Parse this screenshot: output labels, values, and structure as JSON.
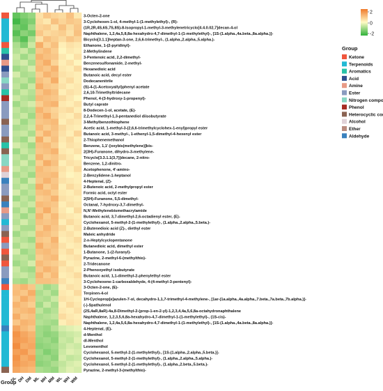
{
  "chart_data": {
    "type": "heatmap",
    "title": "",
    "columns": [
      "DL",
      "DH",
      "DM",
      "ML",
      "MH",
      "MM",
      "WL",
      "WH",
      "WM"
    ],
    "row_annotation_title": "Group",
    "colorbar": {
      "ticks": [
        2,
        0,
        -2
      ],
      "colors": [
        "#f07a2a",
        "#fffbc6",
        "#2fb13a"
      ]
    },
    "groups": [
      {
        "name": "Ketone",
        "color": "#f0563d"
      },
      {
        "name": "Terpenoids",
        "color": "#21b9d4"
      },
      {
        "name": "Aromatics",
        "color": "#28c2a8"
      },
      {
        "name": "Acid",
        "color": "#2f4f8f"
      },
      {
        "name": "Amine",
        "color": "#e89a86"
      },
      {
        "name": "Ester",
        "color": "#8a9bbf"
      },
      {
        "name": "Nitrogen compounds",
        "color": "#88d7c4"
      },
      {
        "name": "Phenol",
        "color": "#a62b22"
      },
      {
        "name": "Heterocyclic compound",
        "color": "#8a6352"
      },
      {
        "name": "Alcohol",
        "color": "#e0d2d8"
      },
      {
        "name": "Ether",
        "color": "#b98b7e"
      },
      {
        "name": "Aldehyde",
        "color": "#3a81bd"
      }
    ],
    "rows": [
      {
        "label": "3-Octen-2-one",
        "group": "Ketone",
        "values": [
          -1.5,
          -1.2,
          -1.0,
          0.4,
          0.8,
          0.6,
          0.5,
          0.9,
          0.3
        ]
      },
      {
        "label": "3-Cyclohexen-1-ol, 4-methyl-1-(1-methylethyl)-, (R)-",
        "group": "Terpenoids",
        "values": [
          -1.8,
          -1.4,
          -1.2,
          0.5,
          0.3,
          0.9,
          0.6,
          0.8,
          0.7
        ]
      },
      {
        "label": "(1R,2R,4S,6S,7S,8S)-8-Isopropyl-1-methyl-3-methylenetricyclo[4.4.0.02,7]decan-4-ol",
        "group": "Terpenoids",
        "values": [
          -1.3,
          -1.5,
          -0.9,
          0.6,
          0.7,
          0.4,
          0.9,
          0.5,
          0.8
        ]
      },
      {
        "label": "Naphthalene, 1,2,4a,5,8,8a-hexahydro-4,7-dimethyl-1-(1-methylethyl)-, [1S-(1.alpha.,4a.beta.,8a.alpha.)]-",
        "group": "Terpenoids",
        "values": [
          -1.6,
          -1.1,
          -1.3,
          0.8,
          0.5,
          0.6,
          0.7,
          0.4,
          0.9
        ]
      },
      {
        "label": "Bicyclo[3.1.1]heptan-3-one, 2,6,6-trimethyl-, (1.alpha.,2.alpha.,5.alpha.)-",
        "group": "Terpenoids",
        "values": [
          -1.2,
          -1.6,
          -0.8,
          0.4,
          0.9,
          0.7,
          0.5,
          0.8,
          0.6
        ]
      },
      {
        "label": "Ethanone, 1-(2-pyridinyl)-",
        "group": "Ketone",
        "values": [
          -0.8,
          -1.2,
          -0.5,
          1.2,
          0.6,
          0.9,
          0.2,
          0.4,
          0.3
        ]
      },
      {
        "label": "2-Methylindene",
        "group": "Aromatics",
        "values": [
          -0.7,
          -0.5,
          -0.9,
          0.8,
          1.0,
          0.7,
          0.1,
          0.3,
          0.2
        ]
      },
      {
        "label": "3-Pentenoic acid, 2,2-dimethyl-",
        "group": "Acid",
        "values": [
          -0.5,
          -0.9,
          -0.6,
          1.1,
          0.9,
          0.8,
          0.3,
          0.1,
          0.4
        ]
      },
      {
        "label": "Benzenesulfonamide, 2-methyl-",
        "group": "Amine",
        "values": [
          -0.6,
          -0.4,
          -0.8,
          0.9,
          1.2,
          0.6,
          0.2,
          0.4,
          0.1
        ]
      },
      {
        "label": "Hexanedioic acid",
        "group": "Acid",
        "values": [
          -0.9,
          -0.7,
          -0.4,
          1.0,
          0.8,
          1.1,
          0.3,
          0.2,
          0.5
        ]
      },
      {
        "label": "Butanoic acid, decyl ester",
        "group": "Ester",
        "values": [
          -0.4,
          -0.8,
          -0.7,
          0.7,
          1.1,
          0.9,
          0.4,
          0.3,
          0.2
        ]
      },
      {
        "label": "Dodecanenitrile",
        "group": "Nitrogen compounds",
        "values": [
          -0.7,
          -0.6,
          -0.9,
          0.9,
          0.7,
          1.2,
          0.3,
          0.5,
          0.2
        ]
      },
      {
        "label": "(S)-4-(1-Acetoxyallyl)phenyl acetate",
        "group": "Ester",
        "values": [
          -0.6,
          -0.9,
          -0.5,
          1.2,
          0.8,
          0.7,
          0.4,
          0.2,
          0.3
        ]
      },
      {
        "label": "2,6,10-Trimethyltridecane",
        "group": "Aromatics",
        "values": [
          -0.8,
          -0.5,
          -0.7,
          0.8,
          1.1,
          0.9,
          0.2,
          0.4,
          0.3
        ]
      },
      {
        "label": "Phenol, 4-(3-hydroxy-1-propenyl)-",
        "group": "Phenol",
        "values": [
          -0.5,
          -0.7,
          -0.8,
          1.0,
          0.9,
          0.8,
          0.5,
          0.3,
          0.1
        ]
      },
      {
        "label": "Butyl caprate",
        "group": "Ester",
        "values": [
          -0.9,
          -0.6,
          -0.4,
          0.7,
          1.0,
          1.1,
          0.3,
          0.2,
          0.4
        ]
      },
      {
        "label": "8-Dodecen-1-ol, acetate, (E)-",
        "group": "Ester",
        "values": [
          -0.6,
          -0.8,
          -0.7,
          1.1,
          0.8,
          0.6,
          0.4,
          0.5,
          0.2
        ]
      },
      {
        "label": "2,2,4-Trimethyl-1,3-pentanediol diisobutyrate",
        "group": "Ester",
        "values": [
          -0.7,
          -0.5,
          -0.9,
          0.9,
          1.2,
          0.7,
          0.3,
          0.2,
          0.5
        ]
      },
      {
        "label": "3-Methylbenzothiophene",
        "group": "Heterocyclic compound",
        "values": [
          -0.5,
          -0.9,
          -0.6,
          0.8,
          0.9,
          1.0,
          0.2,
          0.4,
          0.3
        ]
      },
      {
        "label": "Acetic acid, 1-methyl-3-(2,6,6-trimethylcyclohex-1-enyl)propyl ester",
        "group": "Ester",
        "values": [
          -0.8,
          -0.7,
          -0.5,
          1.0,
          0.7,
          0.9,
          0.5,
          0.3,
          0.2
        ]
      },
      {
        "label": "Butanoic acid, 3-methyl-, 1-ethenyl-1,5-dimethyl-4-hexenyl ester",
        "group": "Ester",
        "values": [
          -0.6,
          -0.5,
          -0.8,
          0.7,
          1.1,
          0.8,
          0.4,
          0.2,
          0.6
        ]
      },
      {
        "label": "2-Thiophenemethanol",
        "group": "Heterocyclic compound",
        "values": [
          -0.7,
          -0.9,
          -0.4,
          1.2,
          0.6,
          0.9,
          0.3,
          0.5,
          0.2
        ]
      },
      {
        "label": "Benzene, 1,1'-[oxybis(methylene)]bis-",
        "group": "Aromatics",
        "values": [
          -0.4,
          -0.6,
          -0.9,
          0.9,
          1.0,
          0.7,
          0.2,
          0.4,
          0.3
        ]
      },
      {
        "label": "2(3H)-Furanone, dihydro-3-methylene-",
        "group": "Heterocyclic compound",
        "values": [
          -0.9,
          -0.5,
          -0.7,
          0.8,
          0.9,
          1.1,
          0.3,
          0.2,
          0.4
        ]
      },
      {
        "label": "Tricyclo[3.3.1.1(3,7)]decane, 2-nitro-",
        "group": "Nitrogen compounds",
        "values": [
          -0.6,
          -0.8,
          -0.5,
          1.1,
          0.7,
          0.8,
          0.5,
          0.3,
          0.1
        ]
      },
      {
        "label": "Benzene, 1,2-dinitro-",
        "group": "Nitrogen compounds",
        "values": [
          -0.7,
          -0.4,
          -0.8,
          0.7,
          1.2,
          0.9,
          0.2,
          0.4,
          0.3
        ]
      },
      {
        "label": "Acetophenone, 4'-amino-",
        "group": "Amine",
        "values": [
          -0.5,
          -0.7,
          -0.6,
          1.0,
          0.8,
          0.7,
          0.4,
          0.2,
          0.5
        ]
      },
      {
        "label": "2-Benzylidene-1-heptanol",
        "group": "Alcohol",
        "values": [
          -0.8,
          -0.6,
          -0.9,
          0.9,
          0.9,
          1.0,
          0.3,
          0.1,
          0.2
        ]
      },
      {
        "label": "4-Heptenal, (Z)-",
        "group": "Aldehyde",
        "values": [
          -0.6,
          -0.9,
          -0.4,
          0.8,
          1.1,
          0.8,
          0.4,
          0.3,
          0.2
        ]
      },
      {
        "label": "2-Butenoic acid, 2-methylpropyl ester",
        "group": "Ester",
        "values": [
          -0.7,
          -0.5,
          -0.7,
          1.2,
          0.7,
          0.9,
          0.2,
          0.5,
          0.3
        ]
      },
      {
        "label": "Formic acid, octyl ester",
        "group": "Ester",
        "values": [
          -0.4,
          -0.8,
          -0.6,
          0.9,
          1.0,
          0.7,
          0.3,
          0.2,
          0.4
        ]
      },
      {
        "label": "2(5H)-Furanone, 5,5-dimethyl-",
        "group": "Heterocyclic compound",
        "values": [
          -0.9,
          -0.6,
          -0.8,
          0.7,
          0.8,
          1.1,
          0.4,
          0.3,
          0.2
        ]
      },
      {
        "label": "Octanal, 7-hydroxy-3,7-dimethyl-",
        "group": "Aldehyde",
        "values": [
          -0.5,
          -0.7,
          -0.5,
          1.0,
          0.9,
          0.8,
          0.2,
          0.4,
          0.3
        ]
      },
      {
        "label": "N,N'-Methylenebismethacrylamide",
        "group": "Amine",
        "values": [
          -0.8,
          -0.5,
          -0.9,
          0.8,
          1.2,
          0.7,
          0.3,
          0.1,
          0.5
        ]
      },
      {
        "label": "Butanoic acid, 3,7-dimethyl-2,6-octadienyl ester, (E)-",
        "group": "Ester",
        "values": [
          -0.6,
          -0.9,
          -0.6,
          1.1,
          0.7,
          1.0,
          0.4,
          0.3,
          0.2
        ]
      },
      {
        "label": "Cyclohexanol, 5-methyl-2-(1-methylethyl)-, (1.alpha.,2.alpha.,5.beta.)-",
        "group": "Terpenoids",
        "values": [
          -0.7,
          -0.4,
          -0.7,
          0.9,
          0.8,
          0.9,
          0.2,
          0.5,
          0.3
        ]
      },
      {
        "label": "2-Butenedioic acid (Z)-, diethyl ester",
        "group": "Ester",
        "values": [
          -0.5,
          -0.8,
          -0.8,
          0.7,
          1.1,
          0.8,
          0.5,
          0.2,
          0.4
        ]
      },
      {
        "label": "Maleic anhydride",
        "group": "Heterocyclic compound",
        "values": [
          -0.9,
          -0.6,
          -0.5,
          1.0,
          0.9,
          0.7,
          0.3,
          0.4,
          0.2
        ]
      },
      {
        "label": "2-n-Heptylcyclopentanone",
        "group": "Ketone",
        "values": [
          -0.6,
          -0.7,
          -0.9,
          0.8,
          0.7,
          1.1,
          0.2,
          0.3,
          0.5
        ]
      },
      {
        "label": "Butanedioic acid, dimethyl ester",
        "group": "Ester",
        "values": [
          -0.8,
          -0.5,
          -0.6,
          1.2,
          0.8,
          0.9,
          0.4,
          0.2,
          0.3
        ]
      },
      {
        "label": "1-Butanone, 1-(2-furanyl)-",
        "group": "Ketone",
        "values": [
          -0.4,
          -0.9,
          -0.7,
          0.9,
          1.0,
          0.8,
          0.3,
          0.5,
          0.2
        ]
      },
      {
        "label": "Pyrazine, 2-methyl-6-(methylthio)-",
        "group": "Heterocyclic compound",
        "values": [
          -0.7,
          -0.6,
          -0.8,
          0.7,
          0.9,
          1.0,
          0.2,
          0.3,
          0.4
        ]
      },
      {
        "label": "2-Tridecanone",
        "group": "Ketone",
        "values": [
          -0.9,
          -0.7,
          -0.4,
          1.0,
          0.8,
          0.7,
          0.5,
          0.2,
          0.3
        ]
      },
      {
        "label": "2-Phenoxyethyl isobutyrate",
        "group": "Ester",
        "values": [
          -0.5,
          -0.8,
          -0.9,
          0.8,
          1.1,
          0.9,
          0.3,
          0.4,
          0.2
        ]
      },
      {
        "label": "Butanoic acid, 1,1-dimethyl-2-phenylethyl ester",
        "group": "Ester",
        "values": [
          -0.6,
          -0.5,
          -0.7,
          1.1,
          0.7,
          1.0,
          0.2,
          0.3,
          0.5
        ]
      },
      {
        "label": "3-Cyclohexene-1-carboxaldehyde, 4-(4-methyl-3-pentenyl)-",
        "group": "Aldehyde",
        "values": [
          -0.8,
          -0.9,
          -0.6,
          0.9,
          0.9,
          0.8,
          0.4,
          0.2,
          0.3
        ]
      },
      {
        "label": "3-Octen-2-one, (E)-",
        "group": "Ketone",
        "values": [
          0.9,
          1.1,
          0.8,
          -0.6,
          -0.9,
          -0.7,
          0.2,
          0.4,
          0.3
        ]
      },
      {
        "label": "Terpinen-4-ol",
        "group": "Terpenoids",
        "values": [
          1.0,
          0.8,
          1.2,
          -0.8,
          -0.6,
          -0.9,
          0.3,
          0.2,
          0.5
        ]
      },
      {
        "label": "1H-Cycloprop[e]azulen-7-ol, decahydro-1,1,7-trimethyl-4-methylene-, [1ar-(1a.alpha.,4a.alpha.,7.beta.,7a.beta.,7b.alpha.)]-",
        "group": "Terpenoids",
        "values": [
          0.8,
          1.2,
          0.9,
          -0.7,
          -0.8,
          -0.5,
          0.4,
          0.3,
          0.2
        ]
      },
      {
        "label": "(-)-Spathulenol",
        "group": "Terpenoids",
        "values": [
          1.1,
          0.9,
          0.7,
          -0.9,
          -0.5,
          -0.8,
          0.2,
          0.5,
          0.3
        ]
      },
      {
        "label": "(2S,4aR,8aR)-4a,8-Dimethyl-2-(prop-1-en-2-yl)-1,2,3,4,4a,5,6,8a-octahydronaphthalene",
        "group": "Terpenoids",
        "values": [
          0.9,
          1.0,
          1.1,
          -0.6,
          -0.9,
          -0.7,
          0.3,
          0.2,
          0.4
        ]
      },
      {
        "label": "Naphthalene, 1,2,3,5,6,8a-hexahydro-4,7-dimethyl-1-(1-methylethyl)-, (1S-cis)-",
        "group": "Terpenoids",
        "values": [
          1.2,
          0.8,
          0.9,
          -0.8,
          -0.7,
          -0.6,
          0.5,
          0.3,
          0.2
        ]
      },
      {
        "label": "Naphthalene, 1,2,4a,5,6,8a-hexahydro-4,7-dimethyl-1-(1-methylethyl)-, [1S-(1.alpha.,4a.beta.,8a.alpha.)]-",
        "group": "Terpenoids",
        "values": [
          0.8,
          1.1,
          1.0,
          -0.7,
          -0.8,
          -0.9,
          0.2,
          0.4,
          0.3
        ]
      },
      {
        "label": "4-Heptenal, (E)-",
        "group": "Aldehyde",
        "values": [
          1.3,
          1.0,
          0.8,
          -0.9,
          -1.0,
          -0.7,
          -0.4,
          -0.3,
          -0.2
        ]
      },
      {
        "label": "d-Menthol",
        "group": "Terpenoids",
        "values": [
          1.6,
          1.3,
          1.1,
          -0.9,
          -1.1,
          -1.0,
          -0.6,
          -0.5,
          -0.4
        ]
      },
      {
        "label": "dl-Menthol",
        "group": "Terpenoids",
        "values": [
          1.5,
          1.4,
          1.2,
          -1.0,
          -0.9,
          -1.1,
          -0.5,
          -0.6,
          -0.3
        ]
      },
      {
        "label": "Levomenthol",
        "group": "Terpenoids",
        "values": [
          1.7,
          1.2,
          1.3,
          -1.1,
          -1.0,
          -0.9,
          -0.6,
          -0.4,
          -0.5
        ]
      },
      {
        "label": "Cyclohexanol, 5-methyl-2-(1-methylethyl)-, [1S-(1.alpha.,2.alpha.,5.beta.)]-",
        "group": "Terpenoids",
        "values": [
          1.4,
          1.5,
          1.1,
          -0.9,
          -1.2,
          -1.0,
          -0.5,
          -0.3,
          -0.4
        ]
      },
      {
        "label": "Cyclohexanol, 5-methyl-2-(1-methylethyl)-, (1.alpha.,2.alpha.,5.alpha.)-",
        "group": "Terpenoids",
        "values": [
          1.6,
          1.2,
          1.4,
          -1.0,
          -0.9,
          -1.1,
          -0.4,
          -0.6,
          -0.5
        ]
      },
      {
        "label": "Cyclohexanol, 5-methyl-2-(1-methylethyl)-, (1.alpha.,2.beta.,5.beta.)-",
        "group": "Terpenoids",
        "values": [
          1.5,
          1.3,
          1.2,
          -1.1,
          -1.0,
          -0.8,
          -0.6,
          -0.4,
          -0.3
        ]
      },
      {
        "label": "Pyrazine, 2-methyl-3-(methylthio)-",
        "group": "Heterocyclic compound",
        "values": [
          1.3,
          1.1,
          1.0,
          -0.8,
          -0.9,
          -1.0,
          -0.5,
          -0.3,
          -0.4
        ]
      }
    ]
  }
}
